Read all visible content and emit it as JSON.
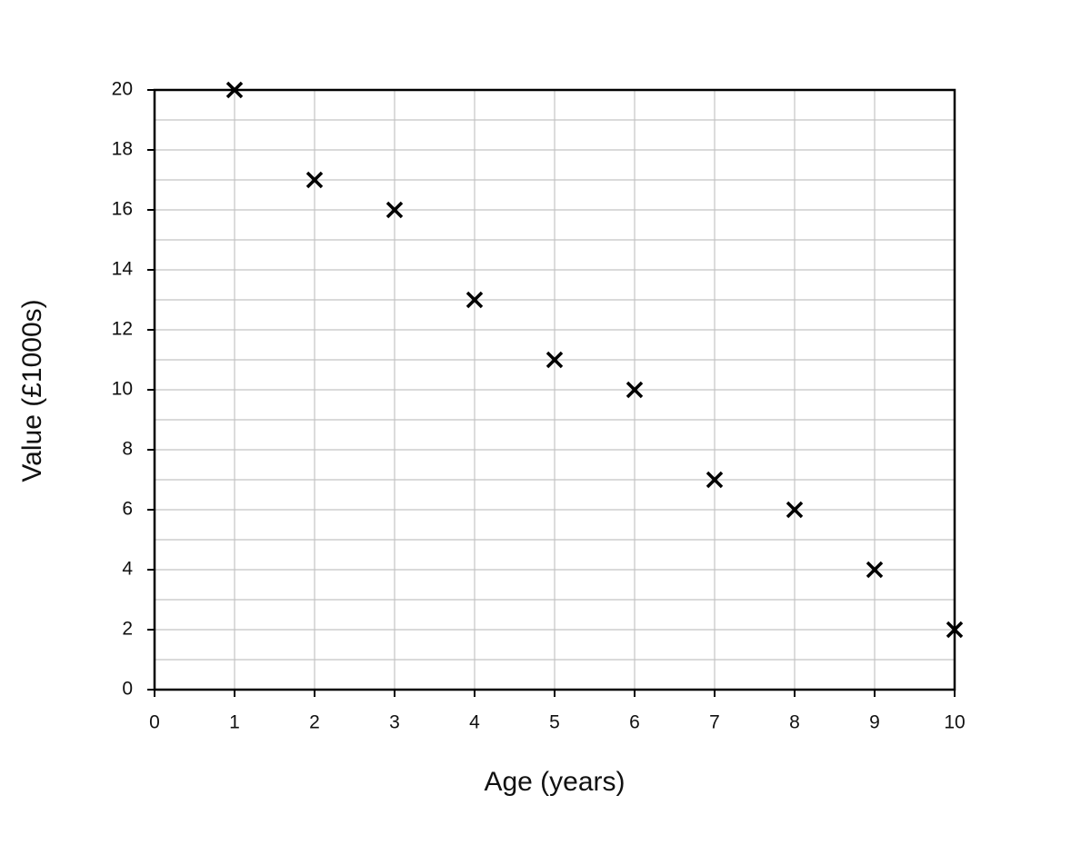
{
  "chart_data": {
    "type": "scatter",
    "x": [
      1,
      2,
      3,
      4,
      5,
      6,
      7,
      8,
      9,
      10
    ],
    "values": [
      20,
      17,
      16,
      13,
      11,
      10,
      7,
      6,
      4,
      2
    ],
    "color": "#000000",
    "marker": "x",
    "xlabel": "Age (years)",
    "ylabel": "Value (£1000s)",
    "xlim": [
      0,
      10
    ],
    "ylim": [
      0,
      20
    ],
    "xticks": [
      0,
      1,
      2,
      3,
      4,
      5,
      6,
      7,
      8,
      9,
      10
    ],
    "yticks": [
      0,
      2,
      4,
      6,
      8,
      10,
      12,
      14,
      16,
      18,
      20
    ],
    "grid": true
  }
}
